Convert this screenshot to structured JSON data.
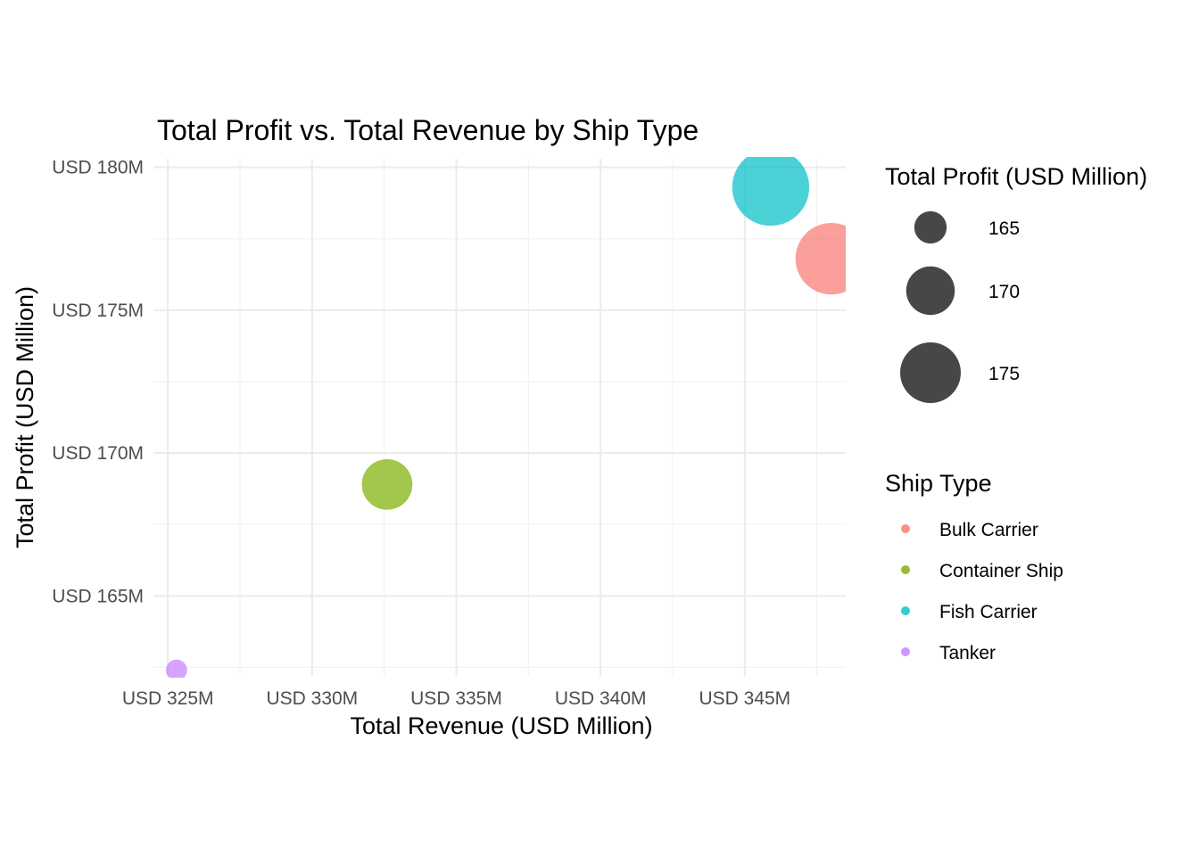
{
  "chart_data": {
    "type": "scatter",
    "title": "Total Profit vs. Total Revenue by Ship Type",
    "xlabel": "Total Revenue (USD Million)",
    "ylabel": "Total Profit (USD Million)",
    "xlim": [
      324.5,
      348.5
    ],
    "ylim": [
      162.2,
      180.3
    ],
    "x_ticks": [
      325,
      330,
      335,
      340,
      345
    ],
    "x_tick_labels": [
      "USD 325M",
      "USD 330M",
      "USD 335M",
      "USD 340M",
      "USD 345M"
    ],
    "y_ticks": [
      165,
      170,
      175,
      180
    ],
    "y_tick_labels": [
      "USD 165M",
      "USD 170M",
      "USD 175M",
      "USD 180M"
    ],
    "grid": true,
    "legend_position": "right",
    "series": [
      {
        "name": "Bulk Carrier",
        "color": "#F8766D",
        "x": 348.0,
        "y": 176.8,
        "size": 176.8
      },
      {
        "name": "Container Ship",
        "color": "#7CAE00",
        "x": 332.6,
        "y": 168.9,
        "size": 168.9
      },
      {
        "name": "Fish Carrier",
        "color": "#00BFC4",
        "x": 345.9,
        "y": 179.3,
        "size": 179.3
      },
      {
        "name": "Tanker",
        "color": "#C77CFF",
        "x": 325.3,
        "y": 162.4,
        "size": 162.4
      }
    ],
    "size_legend": {
      "title": "Total Profit (USD Million)",
      "values": [
        165,
        170,
        175
      ],
      "labels": [
        "165",
        "170",
        "175"
      ],
      "color": "#333333"
    },
    "color_legend": {
      "title": "Ship Type",
      "labels": [
        "Bulk Carrier",
        "Container Ship",
        "Fish Carrier",
        "Tanker"
      ]
    }
  }
}
